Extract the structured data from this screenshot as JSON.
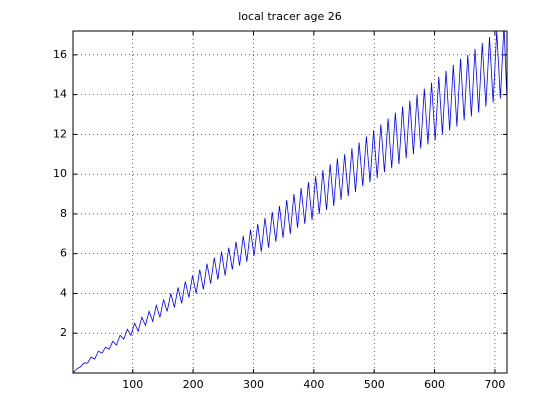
{
  "chart_data": {
    "type": "line",
    "title": "local tracer age 26",
    "x": [
      1,
      7,
      13,
      19,
      25,
      31,
      37,
      43,
      49,
      55,
      61,
      67,
      73,
      79,
      85,
      91,
      97,
      103,
      109,
      115,
      121,
      127,
      133,
      139,
      145,
      151,
      157,
      163,
      169,
      175,
      181,
      187,
      193,
      199,
      205,
      211,
      217,
      223,
      229,
      235,
      241,
      247,
      253,
      259,
      265,
      271,
      277,
      283,
      289,
      295,
      301,
      307,
      313,
      319,
      325,
      331,
      337,
      343,
      349,
      355,
      361,
      367,
      373,
      379,
      385,
      391,
      397,
      403,
      409,
      415,
      421,
      427,
      433,
      439,
      445,
      451,
      457,
      463,
      469,
      475,
      481,
      487,
      493,
      499,
      505,
      511,
      517,
      523,
      529,
      535,
      541,
      547,
      553,
      559,
      565,
      571,
      577,
      583,
      589,
      595,
      601,
      607,
      613,
      619,
      625,
      631,
      637,
      643,
      649,
      655,
      661,
      667,
      673,
      679,
      685,
      691,
      697,
      703,
      709,
      715,
      720
    ],
    "series": [
      {
        "color": "#0000ff",
        "values": [
          0.0,
          0.2,
          0.3,
          0.5,
          0.5,
          0.8,
          0.7,
          1.1,
          1.0,
          1.3,
          1.2,
          1.6,
          1.4,
          1.9,
          1.7,
          2.2,
          1.9,
          2.5,
          2.1,
          2.8,
          2.4,
          3.1,
          2.6,
          3.4,
          2.8,
          3.7,
          3.1,
          4.0,
          3.3,
          4.3,
          3.5,
          4.6,
          3.8,
          4.9,
          4.0,
          5.2,
          4.2,
          5.5,
          4.5,
          5.8,
          4.7,
          6.1,
          4.9,
          6.3,
          5.2,
          6.6,
          5.4,
          6.9,
          5.6,
          7.2,
          5.9,
          7.5,
          6.1,
          7.8,
          6.3,
          8.1,
          6.6,
          8.4,
          6.8,
          8.7,
          7.0,
          9.0,
          7.3,
          9.3,
          7.5,
          9.6,
          7.7,
          9.9,
          8.0,
          10.2,
          8.2,
          10.5,
          8.4,
          10.8,
          8.7,
          11.0,
          8.9,
          11.3,
          9.1,
          11.6,
          9.4,
          11.9,
          9.6,
          12.2,
          9.8,
          12.5,
          10.1,
          12.8,
          10.3,
          13.1,
          10.5,
          13.4,
          10.8,
          13.7,
          11.0,
          14.0,
          11.3,
          14.3,
          11.5,
          14.6,
          11.7,
          14.9,
          12.0,
          15.2,
          12.2,
          15.5,
          12.4,
          15.8,
          12.7,
          16.0,
          12.9,
          16.3,
          13.1,
          16.6,
          13.4,
          16.9,
          13.6,
          17.2,
          13.8,
          17.5,
          13.7
        ]
      }
    ],
    "xlim": [
      1,
      720
    ],
    "xticks": [
      100,
      200,
      300,
      400,
      500,
      600,
      700
    ],
    "ylim": [
      0,
      17.2
    ],
    "yticks": [
      2,
      4,
      6,
      8,
      10,
      12,
      14,
      16
    ],
    "grid": true
  }
}
